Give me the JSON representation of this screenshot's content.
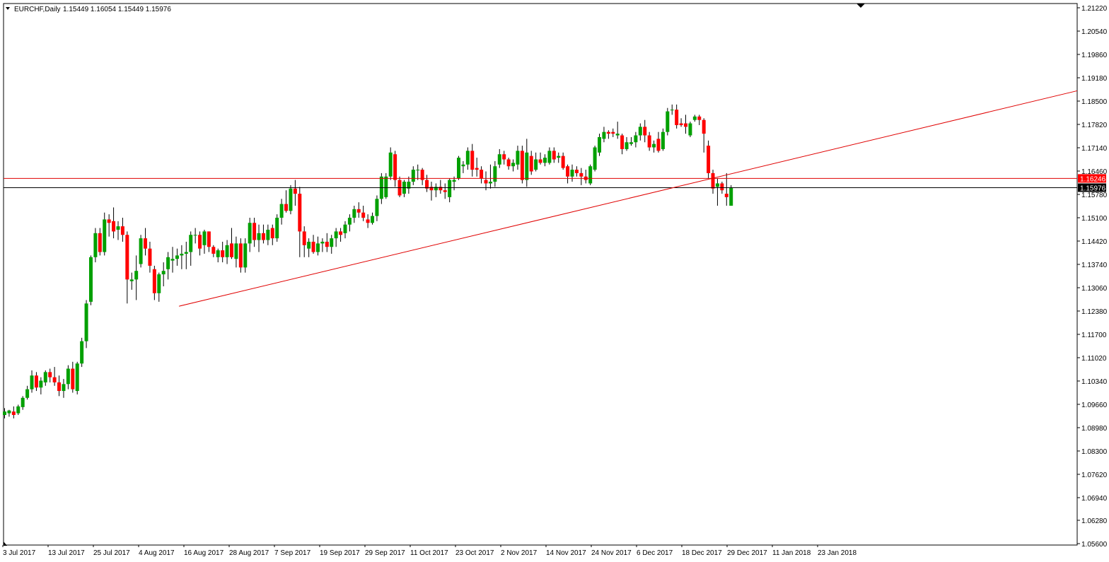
{
  "header": {
    "symbol": "EURCHF,Daily",
    "ohlc": "1.15449 1.16054 1.15449 1.15976"
  },
  "colors": {
    "background": "#ffffff",
    "bull": "#00a000",
    "bear": "#ff0000",
    "wick": "#000000",
    "trendline": "#e00000",
    "resistance_line": "#e00000",
    "price_line": "#000000",
    "resistance_label_bg": "#ff0000",
    "price_label_bg": "#000000"
  },
  "chart_data": {
    "type": "candlestick",
    "title": "EURCHF,Daily",
    "ylim": [
      1.056,
      1.2122
    ],
    "y_ticks": [
      "1.21220",
      "1.20540",
      "1.19860",
      "1.19180",
      "1.18500",
      "1.17820",
      "1.17140",
      "1.16460",
      "1.15780",
      "1.15100",
      "1.14420",
      "1.13740",
      "1.13060",
      "1.12380",
      "1.11700",
      "1.11020",
      "1.10340",
      "1.09660",
      "1.08980",
      "1.08300",
      "1.07620",
      "1.06940",
      "1.06280",
      "1.05600"
    ],
    "x_labels": [
      "3 Jul 2017",
      "13 Jul 2017",
      "25 Jul 2017",
      "4 Aug 2017",
      "16 Aug 2017",
      "28 Aug 2017",
      "7 Sep 2017",
      "19 Sep 2017",
      "29 Sep 2017",
      "11 Oct 2017",
      "23 Oct 2017",
      "2 Nov 2017",
      "14 Nov 2017",
      "24 Nov 2017",
      "6 Dec 2017",
      "18 Dec 2017",
      "29 Dec 2017",
      "11 Jan 2018",
      "23 Jan 2018"
    ],
    "candles": [
      {
        "o": 1.0935,
        "h": 1.0955,
        "l": 1.0925,
        "c": 1.0945
      },
      {
        "o": 1.094,
        "h": 1.095,
        "l": 1.093,
        "c": 1.0948
      },
      {
        "o": 1.0945,
        "h": 1.096,
        "l": 1.0925,
        "c": 1.0935
      },
      {
        "o": 1.094,
        "h": 1.0965,
        "l": 1.0935,
        "c": 1.096
      },
      {
        "o": 1.0958,
        "h": 1.099,
        "l": 1.095,
        "c": 1.0985
      },
      {
        "o": 1.0985,
        "h": 1.102,
        "l": 1.098,
        "c": 1.101
      },
      {
        "o": 1.101,
        "h": 1.1065,
        "l": 1.1,
        "c": 1.105
      },
      {
        "o": 1.105,
        "h": 1.106,
        "l": 1.1005,
        "c": 1.1015
      },
      {
        "o": 1.1015,
        "h": 1.1045,
        "l": 1.0995,
        "c": 1.1035
      },
      {
        "o": 1.103,
        "h": 1.1065,
        "l": 1.102,
        "c": 1.106
      },
      {
        "o": 1.106,
        "h": 1.107,
        "l": 1.103,
        "c": 1.1045
      },
      {
        "o": 1.1045,
        "h": 1.1075,
        "l": 1.102,
        "c": 1.103
      },
      {
        "o": 1.103,
        "h": 1.105,
        "l": 1.099,
        "c": 1.1005
      },
      {
        "o": 1.1005,
        "h": 1.104,
        "l": 1.0985,
        "c": 1.1025
      },
      {
        "o": 1.1025,
        "h": 1.108,
        "l": 1.101,
        "c": 1.107
      },
      {
        "o": 1.107,
        "h": 1.109,
        "l": 1.1,
        "c": 1.101
      },
      {
        "o": 1.1005,
        "h": 1.109,
        "l": 1.0995,
        "c": 1.1085
      },
      {
        "o": 1.1085,
        "h": 1.116,
        "l": 1.1075,
        "c": 1.115
      },
      {
        "o": 1.115,
        "h": 1.127,
        "l": 1.113,
        "c": 1.126
      },
      {
        "o": 1.1265,
        "h": 1.14,
        "l": 1.1255,
        "c": 1.1395
      },
      {
        "o": 1.1395,
        "h": 1.148,
        "l": 1.138,
        "c": 1.1465
      },
      {
        "o": 1.1465,
        "h": 1.148,
        "l": 1.14,
        "c": 1.141
      },
      {
        "o": 1.141,
        "h": 1.1525,
        "l": 1.14,
        "c": 1.1505
      },
      {
        "o": 1.1505,
        "h": 1.152,
        "l": 1.1455,
        "c": 1.1495
      },
      {
        "o": 1.15,
        "h": 1.154,
        "l": 1.145,
        "c": 1.147
      },
      {
        "o": 1.1475,
        "h": 1.15,
        "l": 1.1445,
        "c": 1.1485
      },
      {
        "o": 1.1485,
        "h": 1.151,
        "l": 1.144,
        "c": 1.146
      },
      {
        "o": 1.146,
        "h": 1.147,
        "l": 1.126,
        "c": 1.133
      },
      {
        "o": 1.1325,
        "h": 1.135,
        "l": 1.13,
        "c": 1.133
      },
      {
        "o": 1.133,
        "h": 1.14,
        "l": 1.127,
        "c": 1.1355
      },
      {
        "o": 1.1375,
        "h": 1.146,
        "l": 1.1365,
        "c": 1.145
      },
      {
        "o": 1.145,
        "h": 1.148,
        "l": 1.14,
        "c": 1.142
      },
      {
        "o": 1.142,
        "h": 1.144,
        "l": 1.135,
        "c": 1.137
      },
      {
        "o": 1.136,
        "h": 1.137,
        "l": 1.127,
        "c": 1.129
      },
      {
        "o": 1.129,
        "h": 1.135,
        "l": 1.1265,
        "c": 1.1345
      },
      {
        "o": 1.1345,
        "h": 1.138,
        "l": 1.131,
        "c": 1.1355
      },
      {
        "o": 1.136,
        "h": 1.141,
        "l": 1.133,
        "c": 1.1395
      },
      {
        "o": 1.1385,
        "h": 1.1425,
        "l": 1.135,
        "c": 1.139
      },
      {
        "o": 1.139,
        "h": 1.142,
        "l": 1.137,
        "c": 1.14
      },
      {
        "o": 1.14,
        "h": 1.143,
        "l": 1.136,
        "c": 1.1405
      },
      {
        "o": 1.1405,
        "h": 1.144,
        "l": 1.136,
        "c": 1.141
      },
      {
        "o": 1.141,
        "h": 1.147,
        "l": 1.137,
        "c": 1.146
      },
      {
        "o": 1.146,
        "h": 1.148,
        "l": 1.1435,
        "c": 1.146
      },
      {
        "o": 1.146,
        "h": 1.147,
        "l": 1.14,
        "c": 1.142
      },
      {
        "o": 1.143,
        "h": 1.1475,
        "l": 1.1405,
        "c": 1.147
      },
      {
        "o": 1.147,
        "h": 1.147,
        "l": 1.141,
        "c": 1.1425
      },
      {
        "o": 1.1425,
        "h": 1.143,
        "l": 1.1395,
        "c": 1.1405
      },
      {
        "o": 1.1395,
        "h": 1.142,
        "l": 1.138,
        "c": 1.1415
      },
      {
        "o": 1.1415,
        "h": 1.144,
        "l": 1.138,
        "c": 1.1395
      },
      {
        "o": 1.1395,
        "h": 1.1445,
        "l": 1.1375,
        "c": 1.143
      },
      {
        "o": 1.1435,
        "h": 1.148,
        "l": 1.139,
        "c": 1.1395
      },
      {
        "o": 1.139,
        "h": 1.1455,
        "l": 1.1365,
        "c": 1.1435
      },
      {
        "o": 1.1435,
        "h": 1.145,
        "l": 1.135,
        "c": 1.1365
      },
      {
        "o": 1.1365,
        "h": 1.145,
        "l": 1.135,
        "c": 1.1435
      },
      {
        "o": 1.1435,
        "h": 1.151,
        "l": 1.141,
        "c": 1.1495
      },
      {
        "o": 1.1495,
        "h": 1.151,
        "l": 1.1425,
        "c": 1.1445
      },
      {
        "o": 1.1445,
        "h": 1.149,
        "l": 1.141,
        "c": 1.1465
      },
      {
        "o": 1.1465,
        "h": 1.149,
        "l": 1.1435,
        "c": 1.1445
      },
      {
        "o": 1.1445,
        "h": 1.149,
        "l": 1.143,
        "c": 1.1475
      },
      {
        "o": 1.148,
        "h": 1.149,
        "l": 1.143,
        "c": 1.145
      },
      {
        "o": 1.145,
        "h": 1.152,
        "l": 1.144,
        "c": 1.151
      },
      {
        "o": 1.151,
        "h": 1.1565,
        "l": 1.149,
        "c": 1.155
      },
      {
        "o": 1.155,
        "h": 1.159,
        "l": 1.1525,
        "c": 1.153
      },
      {
        "o": 1.153,
        "h": 1.1605,
        "l": 1.152,
        "c": 1.1595
      },
      {
        "o": 1.1595,
        "h": 1.162,
        "l": 1.1545,
        "c": 1.158
      },
      {
        "o": 1.158,
        "h": 1.16,
        "l": 1.1395,
        "c": 1.147
      },
      {
        "o": 1.147,
        "h": 1.1485,
        "l": 1.1395,
        "c": 1.143
      },
      {
        "o": 1.142,
        "h": 1.145,
        "l": 1.1395,
        "c": 1.144
      },
      {
        "o": 1.144,
        "h": 1.146,
        "l": 1.1405,
        "c": 1.141
      },
      {
        "o": 1.141,
        "h": 1.1455,
        "l": 1.14,
        "c": 1.1435
      },
      {
        "o": 1.1435,
        "h": 1.145,
        "l": 1.141,
        "c": 1.144
      },
      {
        "o": 1.144,
        "h": 1.1465,
        "l": 1.141,
        "c": 1.1425
      },
      {
        "o": 1.1425,
        "h": 1.146,
        "l": 1.1405,
        "c": 1.145
      },
      {
        "o": 1.145,
        "h": 1.148,
        "l": 1.1425,
        "c": 1.147
      },
      {
        "o": 1.147,
        "h": 1.148,
        "l": 1.144,
        "c": 1.146
      },
      {
        "o": 1.1465,
        "h": 1.15,
        "l": 1.145,
        "c": 1.149
      },
      {
        "o": 1.149,
        "h": 1.152,
        "l": 1.147,
        "c": 1.151
      },
      {
        "o": 1.151,
        "h": 1.1545,
        "l": 1.1495,
        "c": 1.1535
      },
      {
        "o": 1.1535,
        "h": 1.1555,
        "l": 1.151,
        "c": 1.1525
      },
      {
        "o": 1.1525,
        "h": 1.1545,
        "l": 1.15,
        "c": 1.151
      },
      {
        "o": 1.1505,
        "h": 1.152,
        "l": 1.148,
        "c": 1.1495
      },
      {
        "o": 1.1495,
        "h": 1.1525,
        "l": 1.149,
        "c": 1.1515
      },
      {
        "o": 1.1515,
        "h": 1.1575,
        "l": 1.15,
        "c": 1.1565
      },
      {
        "o": 1.1565,
        "h": 1.164,
        "l": 1.155,
        "c": 1.163
      },
      {
        "o": 1.157,
        "h": 1.164,
        "l": 1.1565,
        "c": 1.163
      },
      {
        "o": 1.163,
        "h": 1.1715,
        "l": 1.162,
        "c": 1.17
      },
      {
        "o": 1.1695,
        "h": 1.1705,
        "l": 1.16,
        "c": 1.162
      },
      {
        "o": 1.162,
        "h": 1.163,
        "l": 1.157,
        "c": 1.1575
      },
      {
        "o": 1.158,
        "h": 1.162,
        "l": 1.157,
        "c": 1.1615
      },
      {
        "o": 1.1595,
        "h": 1.163,
        "l": 1.158,
        "c": 1.1615
      },
      {
        "o": 1.1615,
        "h": 1.166,
        "l": 1.1605,
        "c": 1.165
      },
      {
        "o": 1.165,
        "h": 1.1665,
        "l": 1.162,
        "c": 1.165
      },
      {
        "o": 1.165,
        "h": 1.1655,
        "l": 1.1605,
        "c": 1.162
      },
      {
        "o": 1.162,
        "h": 1.1635,
        "l": 1.1585,
        "c": 1.1595
      },
      {
        "o": 1.16,
        "h": 1.1615,
        "l": 1.156,
        "c": 1.159
      },
      {
        "o": 1.159,
        "h": 1.161,
        "l": 1.157,
        "c": 1.16
      },
      {
        "o": 1.16,
        "h": 1.162,
        "l": 1.158,
        "c": 1.159
      },
      {
        "o": 1.159,
        "h": 1.161,
        "l": 1.1565,
        "c": 1.1585
      },
      {
        "o": 1.157,
        "h": 1.1625,
        "l": 1.1555,
        "c": 1.162
      },
      {
        "o": 1.1615,
        "h": 1.163,
        "l": 1.159,
        "c": 1.162
      },
      {
        "o": 1.1625,
        "h": 1.169,
        "l": 1.162,
        "c": 1.1685
      },
      {
        "o": 1.166,
        "h": 1.1675,
        "l": 1.164,
        "c": 1.1665
      },
      {
        "o": 1.1665,
        "h": 1.1715,
        "l": 1.165,
        "c": 1.1705
      },
      {
        "o": 1.1705,
        "h": 1.1725,
        "l": 1.163,
        "c": 1.165
      },
      {
        "o": 1.1655,
        "h": 1.1685,
        "l": 1.163,
        "c": 1.165
      },
      {
        "o": 1.165,
        "h": 1.166,
        "l": 1.161,
        "c": 1.1625
      },
      {
        "o": 1.162,
        "h": 1.1645,
        "l": 1.159,
        "c": 1.161
      },
      {
        "o": 1.161,
        "h": 1.1665,
        "l": 1.1595,
        "c": 1.1615
      },
      {
        "o": 1.1615,
        "h": 1.1675,
        "l": 1.16,
        "c": 1.166
      },
      {
        "o": 1.1665,
        "h": 1.171,
        "l": 1.1655,
        "c": 1.1695
      },
      {
        "o": 1.1695,
        "h": 1.1705,
        "l": 1.1665,
        "c": 1.168
      },
      {
        "o": 1.168,
        "h": 1.1685,
        "l": 1.165,
        "c": 1.166
      },
      {
        "o": 1.166,
        "h": 1.168,
        "l": 1.1645,
        "c": 1.167
      },
      {
        "o": 1.1665,
        "h": 1.172,
        "l": 1.165,
        "c": 1.1705
      },
      {
        "o": 1.1705,
        "h": 1.172,
        "l": 1.161,
        "c": 1.162
      },
      {
        "o": 1.162,
        "h": 1.174,
        "l": 1.16,
        "c": 1.17
      },
      {
        "o": 1.169,
        "h": 1.1705,
        "l": 1.1635,
        "c": 1.1645
      },
      {
        "o": 1.165,
        "h": 1.17,
        "l": 1.1645,
        "c": 1.168
      },
      {
        "o": 1.168,
        "h": 1.17,
        "l": 1.1665,
        "c": 1.167
      },
      {
        "o": 1.167,
        "h": 1.1695,
        "l": 1.166,
        "c": 1.1685
      },
      {
        "o": 1.167,
        "h": 1.1715,
        "l": 1.1665,
        "c": 1.1705
      },
      {
        "o": 1.1705,
        "h": 1.1715,
        "l": 1.167,
        "c": 1.168
      },
      {
        "o": 1.1685,
        "h": 1.17,
        "l": 1.167,
        "c": 1.169
      },
      {
        "o": 1.169,
        "h": 1.17,
        "l": 1.165,
        "c": 1.1655
      },
      {
        "o": 1.166,
        "h": 1.1665,
        "l": 1.161,
        "c": 1.163
      },
      {
        "o": 1.163,
        "h": 1.1665,
        "l": 1.1615,
        "c": 1.165
      },
      {
        "o": 1.165,
        "h": 1.166,
        "l": 1.163,
        "c": 1.164
      },
      {
        "o": 1.164,
        "h": 1.1655,
        "l": 1.1605,
        "c": 1.163
      },
      {
        "o": 1.163,
        "h": 1.165,
        "l": 1.161,
        "c": 1.162
      },
      {
        "o": 1.161,
        "h": 1.1665,
        "l": 1.1605,
        "c": 1.166
      },
      {
        "o": 1.165,
        "h": 1.172,
        "l": 1.1645,
        "c": 1.1715
      },
      {
        "o": 1.17,
        "h": 1.1755,
        "l": 1.169,
        "c": 1.1745
      },
      {
        "o": 1.174,
        "h": 1.1775,
        "l": 1.173,
        "c": 1.176
      },
      {
        "o": 1.176,
        "h": 1.1765,
        "l": 1.174,
        "c": 1.1755
      },
      {
        "o": 1.176,
        "h": 1.177,
        "l": 1.1745,
        "c": 1.1755
      },
      {
        "o": 1.175,
        "h": 1.179,
        "l": 1.174,
        "c": 1.1755
      },
      {
        "o": 1.175,
        "h": 1.1755,
        "l": 1.1695,
        "c": 1.171
      },
      {
        "o": 1.171,
        "h": 1.1745,
        "l": 1.1705,
        "c": 1.173
      },
      {
        "o": 1.1725,
        "h": 1.1745,
        "l": 1.172,
        "c": 1.173
      },
      {
        "o": 1.173,
        "h": 1.176,
        "l": 1.1715,
        "c": 1.175
      },
      {
        "o": 1.175,
        "h": 1.1785,
        "l": 1.1735,
        "c": 1.1775
      },
      {
        "o": 1.1775,
        "h": 1.1795,
        "l": 1.173,
        "c": 1.175
      },
      {
        "o": 1.175,
        "h": 1.176,
        "l": 1.1705,
        "c": 1.1715
      },
      {
        "o": 1.1715,
        "h": 1.1735,
        "l": 1.17,
        "c": 1.1725
      },
      {
        "o": 1.174,
        "h": 1.176,
        "l": 1.17,
        "c": 1.1705
      },
      {
        "o": 1.171,
        "h": 1.177,
        "l": 1.1705,
        "c": 1.176
      },
      {
        "o": 1.176,
        "h": 1.183,
        "l": 1.175,
        "c": 1.182
      },
      {
        "o": 1.1825,
        "h": 1.184,
        "l": 1.181,
        "c": 1.1825
      },
      {
        "o": 1.1825,
        "h": 1.184,
        "l": 1.177,
        "c": 1.178
      },
      {
        "o": 1.1785,
        "h": 1.18,
        "l": 1.1775,
        "c": 1.178
      },
      {
        "o": 1.1785,
        "h": 1.181,
        "l": 1.1755,
        "c": 1.1775
      },
      {
        "o": 1.175,
        "h": 1.179,
        "l": 1.1745,
        "c": 1.1785
      },
      {
        "o": 1.1795,
        "h": 1.181,
        "l": 1.179,
        "c": 1.1805
      },
      {
        "o": 1.1805,
        "h": 1.181,
        "l": 1.178,
        "c": 1.1795
      },
      {
        "o": 1.1795,
        "h": 1.18,
        "l": 1.17,
        "c": 1.1755
      },
      {
        "o": 1.172,
        "h": 1.1735,
        "l": 1.1625,
        "c": 1.164
      },
      {
        "o": 1.164,
        "h": 1.165,
        "l": 1.158,
        "c": 1.1595
      },
      {
        "o": 1.16,
        "h": 1.1625,
        "l": 1.1545,
        "c": 1.161
      },
      {
        "o": 1.161,
        "h": 1.1615,
        "l": 1.158,
        "c": 1.159
      },
      {
        "o": 1.158,
        "h": 1.164,
        "l": 1.1545,
        "c": 1.157
      },
      {
        "o": 1.1545,
        "h": 1.1605,
        "l": 1.1545,
        "c": 1.1598
      }
    ],
    "trendline": {
      "x1": 1.1252,
      "x2": 1.188
    },
    "resistance_level": "1.16246",
    "current_price": "1.15976",
    "grid": false
  }
}
